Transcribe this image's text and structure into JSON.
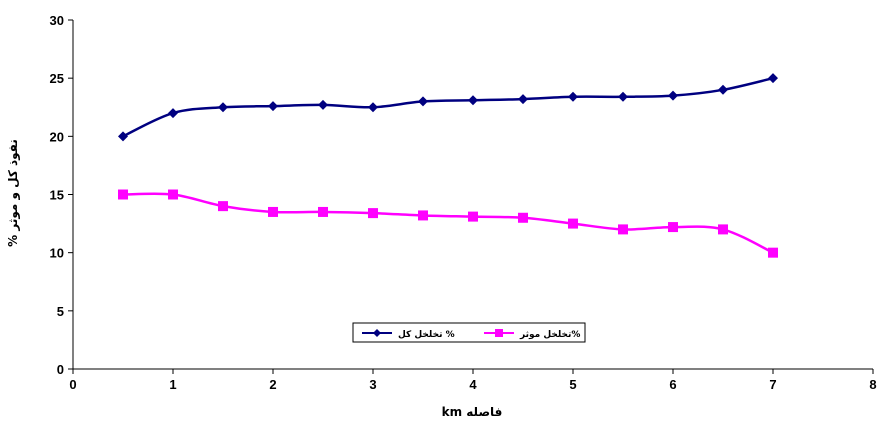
{
  "chart_data": {
    "type": "line",
    "title": "",
    "xlabel": "km فاصله",
    "ylabel": "% نفوذ کل و موثر",
    "xlim": [
      0,
      8
    ],
    "ylim": [
      0,
      30
    ],
    "xticks": [
      0,
      1,
      2,
      3,
      4,
      5,
      6,
      7,
      8
    ],
    "yticks": [
      0,
      5,
      10,
      15,
      20,
      25,
      30
    ],
    "grid": false,
    "legend_position": "bottom-center",
    "x": [
      0.5,
      1.0,
      1.5,
      2.0,
      2.5,
      3.0,
      3.5,
      4.0,
      4.5,
      5.0,
      5.5,
      6.0,
      6.5,
      7.0
    ],
    "series": [
      {
        "name": "تخلخل کل %",
        "color": "#000080",
        "marker": "diamond",
        "values": [
          20.0,
          22.0,
          22.5,
          22.6,
          22.7,
          22.5,
          23.0,
          23.1,
          23.2,
          23.4,
          23.4,
          23.5,
          24.0,
          25.0
        ]
      },
      {
        "name": "تخلخل موثر%",
        "color": "#ff00ff",
        "marker": "square",
        "values": [
          15.0,
          15.0,
          14.0,
          13.5,
          13.5,
          13.4,
          13.2,
          13.1,
          13.0,
          12.5,
          12.0,
          12.2,
          12.0,
          10.0
        ]
      }
    ]
  }
}
